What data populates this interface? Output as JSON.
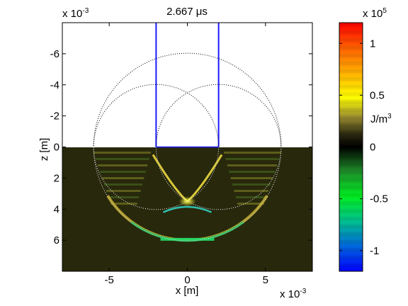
{
  "chart_data": {
    "type": "heatmap",
    "title": "2.667 μs",
    "xlabel": "x [m]",
    "ylabel": "z [m]",
    "x_exponent_label": "x 10",
    "x_exponent_power": "-3",
    "y_exponent_label": "x 10",
    "y_exponent_power": "-3",
    "xlim": [
      -0.008,
      0.008
    ],
    "ylim": [
      -0.008,
      0.008
    ],
    "y_reversed": true,
    "x_ticks": [
      {
        "value": -0.005,
        "label": "-5"
      },
      {
        "value": 0,
        "label": "0"
      },
      {
        "value": 0.005,
        "label": "5"
      }
    ],
    "y_ticks": [
      {
        "value": -0.006,
        "label": "-6"
      },
      {
        "value": -0.004,
        "label": "-4"
      },
      {
        "value": -0.002,
        "label": "-2"
      },
      {
        "value": 0,
        "label": "0"
      },
      {
        "value": 0.002,
        "label": "2"
      },
      {
        "value": 0.004,
        "label": "4"
      },
      {
        "value": 0.006,
        "label": "6"
      }
    ],
    "source_outline": {
      "x_left": -0.002,
      "x_right": 0.002,
      "z_top": -0.008,
      "z_bottom": 0
    },
    "wavefront_circles": [
      {
        "cx": -0.002,
        "cz": 0,
        "r": 0.004
      },
      {
        "cx": 0.002,
        "cz": 0,
        "r": 0.004
      },
      {
        "cx": 0,
        "cz": 0,
        "r": 0.006
      }
    ],
    "colorbar": {
      "label": "J/m",
      "label_power": "3",
      "exponent_label": "x 10",
      "exponent_power": "5",
      "range": [
        -1.2,
        1.2
      ],
      "ticks": [
        {
          "value": 1,
          "label": "1"
        },
        {
          "value": 0.5,
          "label": "0.5"
        },
        {
          "value": 0,
          "label": "0"
        },
        {
          "value": -0.5,
          "label": "-0.5"
        },
        {
          "value": -1,
          "label": "-1"
        }
      ]
    }
  }
}
